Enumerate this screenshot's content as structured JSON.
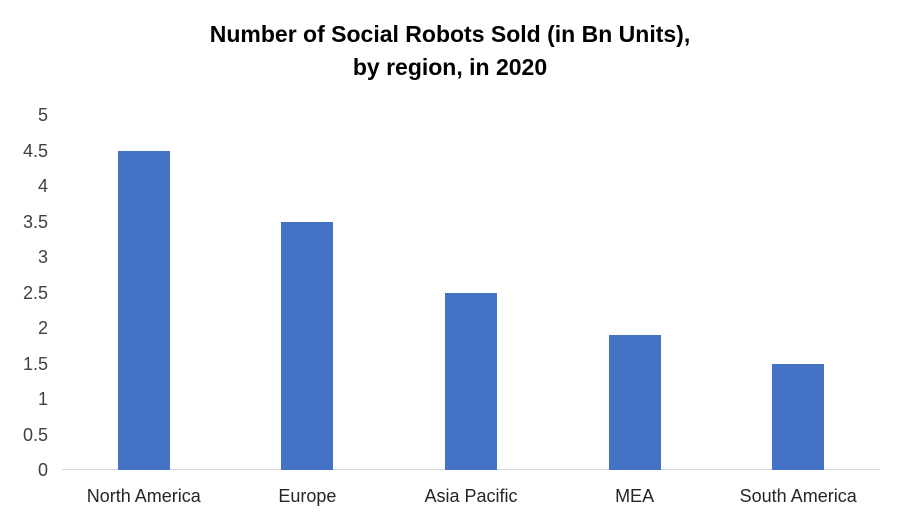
{
  "chart_data": {
    "type": "bar",
    "title": "Number of Social Robots Sold (in Bn Units), by region, in 2020",
    "title_lines": [
      "Number of Social Robots Sold (in Bn Units),",
      "by region, in 2020"
    ],
    "categories": [
      "North America",
      "Europe",
      "Asia Pacific",
      "MEA",
      "South America"
    ],
    "values": [
      4.5,
      3.5,
      2.5,
      1.9,
      1.5
    ],
    "xlabel": "",
    "ylabel": "",
    "ylim": [
      0,
      5
    ],
    "yticks": [
      0,
      0.5,
      1,
      1.5,
      2,
      2.5,
      3,
      3.5,
      4,
      4.5,
      5
    ],
    "grid": false,
    "legend": false,
    "bar_color": "#4472C4",
    "axis_line_color": "#D9D9D9",
    "tick_label_color": "#404040",
    "category_label_color": "#262626",
    "title_color": "#000000"
  }
}
